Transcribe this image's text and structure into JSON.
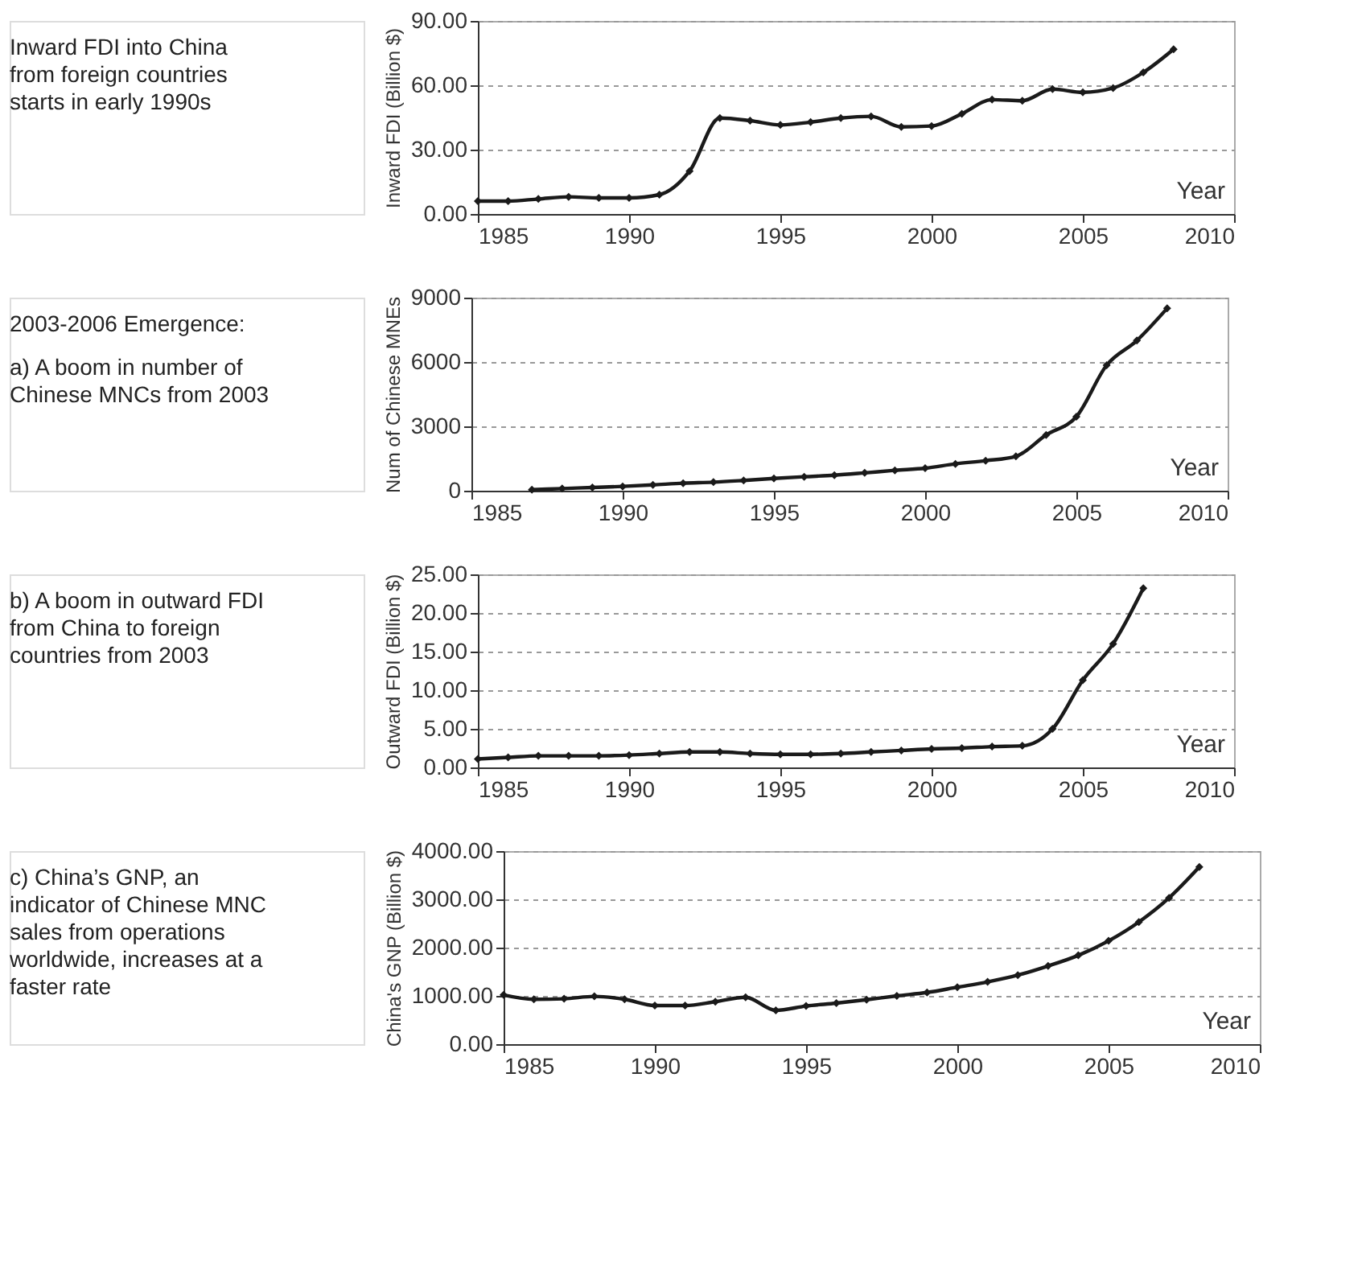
{
  "chart_data": [
    {
      "type": "line",
      "annotations": [
        "Inward FDI into China from foreign countries starts in early 1990s"
      ],
      "xlabel": "Year",
      "ylabel": "Inward FDI (Billion $)",
      "color": "#1a1a1a",
      "marker": "diamond",
      "line_style": "solid",
      "grid": "y",
      "x": [
        1985,
        1986,
        1987,
        1988,
        1989,
        1990,
        1991,
        1992,
        1993,
        1994,
        1995,
        1996,
        1997,
        1998,
        1999,
        2000,
        2001,
        2002,
        2003,
        2004,
        2005,
        2006,
        2007,
        2008
      ],
      "values": [
        6,
        6,
        7,
        8,
        7.5,
        7.5,
        9,
        20,
        44.7,
        43.5,
        41.5,
        42.8,
        44.7,
        45.5,
        40.6,
        41,
        46.7,
        53.3,
        52.8,
        58.2,
        56.7,
        58.7,
        66,
        76.8
      ],
      "xlim": [
        1985,
        2010
      ],
      "xticks": [
        1985,
        1990,
        1995,
        2000,
        2005,
        2010
      ],
      "ylim": [
        0,
        90
      ],
      "yticks": [
        {
          "value": 0,
          "label": "0.00"
        },
        {
          "value": 30,
          "label": "30.00"
        },
        {
          "value": 60,
          "label": "60.00"
        },
        {
          "value": 90,
          "label": "90.00"
        }
      ]
    },
    {
      "type": "line",
      "annotations": [
        "2003-2006 Emergence:",
        "a) A boom in number of Chinese MNCs from 2003"
      ],
      "xlabel": "Year",
      "ylabel": "Num of Chinese MNEs",
      "color": "#1a1a1a",
      "marker": "diamond",
      "line_style": "solid",
      "grid": "y",
      "x": [
        1987,
        1988,
        1989,
        1990,
        1991,
        1992,
        1993,
        1994,
        1995,
        1996,
        1997,
        1998,
        1999,
        2000,
        2001,
        2002,
        2003,
        2004,
        2005,
        2006,
        2007,
        2008
      ],
      "values": [
        50,
        100,
        150,
        200,
        270,
        350,
        400,
        480,
        570,
        650,
        720,
        830,
        950,
        1050,
        1250,
        1400,
        1600,
        2600,
        3450,
        5850,
        7000,
        8500
      ],
      "xlim": [
        1985,
        2010
      ],
      "xticks": [
        1985,
        1990,
        1995,
        2000,
        2005,
        2010
      ],
      "ylim": [
        0,
        9000
      ],
      "yticks": [
        0,
        3000,
        6000,
        9000
      ]
    },
    {
      "type": "line",
      "annotations": [
        "b) A boom in outward FDI from China to foreign countries from 2003"
      ],
      "xlabel": "Year",
      "ylabel": "Outward FDI (Billion $)",
      "color": "#1a1a1a",
      "marker": "diamond",
      "line_style": "solid",
      "grid": "y",
      "x": [
        1985,
        1986,
        1987,
        1988,
        1989,
        1990,
        1991,
        1992,
        1993,
        1994,
        1995,
        1996,
        1997,
        1998,
        1999,
        2000,
        2001,
        2002,
        2003,
        2004,
        2005,
        2006,
        2007
      ],
      "values": [
        1.1,
        1.3,
        1.5,
        1.5,
        1.5,
        1.6,
        1.8,
        2.0,
        2.0,
        1.8,
        1.7,
        1.7,
        1.8,
        2.0,
        2.2,
        2.4,
        2.5,
        2.7,
        2.8,
        5.0,
        11.3,
        16.0,
        23.2
      ],
      "xlim": [
        1985,
        2010
      ],
      "xticks": [
        1985,
        1990,
        1995,
        2000,
        2005,
        2010
      ],
      "ylim": [
        0,
        25
      ],
      "yticks": [
        {
          "value": 0,
          "label": "0.00"
        },
        {
          "value": 5,
          "label": "5.00"
        },
        {
          "value": 10,
          "label": "10.00"
        },
        {
          "value": 15,
          "label": "15.00"
        },
        {
          "value": 20,
          "label": "20.00"
        },
        {
          "value": 25,
          "label": "25.00"
        }
      ]
    },
    {
      "type": "line",
      "annotations": [
        "c) China’s GNP, an indicator of Chinese MNC sales from operations worldwide, increases at a faster rate"
      ],
      "xlabel": "Year",
      "ylabel": "China's GNP (Billion $)",
      "color": "#1a1a1a",
      "marker": "diamond",
      "line_style": "solid",
      "grid": "y",
      "x": [
        1985,
        1986,
        1987,
        1988,
        1989,
        1990,
        1991,
        1992,
        1993,
        1994,
        1995,
        1996,
        1997,
        1998,
        1999,
        2000,
        2001,
        2002,
        2003,
        2004,
        2005,
        2006,
        2007,
        2008
      ],
      "values": [
        1020,
        930,
        940,
        990,
        930,
        800,
        800,
        880,
        970,
        700,
        790,
        850,
        920,
        1000,
        1070,
        1180,
        1290,
        1430,
        1620,
        1840,
        2140,
        2530,
        3030,
        3670
      ],
      "xlim": [
        1985,
        2010
      ],
      "xticks": [
        1985,
        1990,
        1995,
        2000,
        2005,
        2010
      ],
      "ylim": [
        0,
        4000
      ],
      "yticks": [
        {
          "value": 0,
          "label": "0.00"
        },
        {
          "value": 1000,
          "label": "1000.00"
        },
        {
          "value": 2000,
          "label": "2000.00"
        },
        {
          "value": 3000,
          "label": "3000.00"
        },
        {
          "value": 4000,
          "label": "4000.00"
        }
      ]
    }
  ]
}
